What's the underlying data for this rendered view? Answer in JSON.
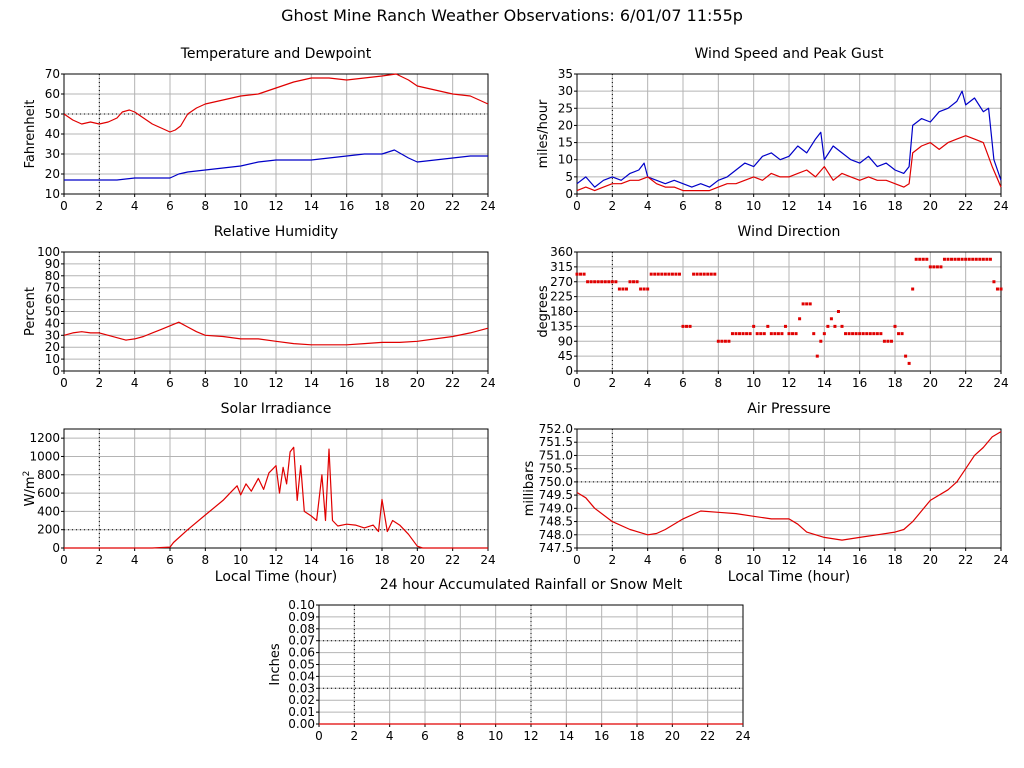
{
  "page": {
    "title": "Ghost Mine Ranch Weather Observations: 6/01/07 11:55p"
  },
  "colors": {
    "red": "#e00000",
    "blue": "#0000c8",
    "grid": "#b4b4b4",
    "axis": "#000000"
  },
  "chart_data": [
    {
      "id": "temp",
      "type": "line",
      "title": "Temperature and Dewpoint",
      "ylabel": "Fahrenheit",
      "xlabel": "",
      "xlim": [
        0,
        24
      ],
      "ylim": [
        10,
        70
      ],
      "xticks": [
        0,
        2,
        4,
        6,
        8,
        10,
        12,
        14,
        16,
        18,
        20,
        22,
        24
      ],
      "yticks": [
        10,
        20,
        30,
        40,
        50,
        60,
        70
      ],
      "dotted_y": [
        50
      ],
      "grid": true,
      "series": [
        {
          "color": "red",
          "x": [
            0,
            0.5,
            1,
            1.5,
            2,
            2.5,
            3,
            3.3,
            3.7,
            4,
            4.5,
            5,
            5.5,
            6,
            6.3,
            6.6,
            7,
            7.5,
            8,
            9,
            10,
            11,
            12,
            13,
            14,
            15,
            16,
            17,
            18,
            18.8,
            19.5,
            20,
            21,
            22,
            23,
            23.5,
            24
          ],
          "y": [
            50,
            47,
            45,
            46,
            45,
            46,
            48,
            51,
            52,
            51,
            48,
            45,
            43,
            41,
            42,
            44,
            50,
            53,
            55,
            57,
            59,
            60,
            63,
            66,
            68,
            68,
            67,
            68,
            69,
            70,
            67,
            64,
            62,
            60,
            59,
            57,
            55
          ]
        },
        {
          "color": "blue",
          "x": [
            0,
            1,
            2,
            3,
            4,
            5,
            5.5,
            6,
            6.5,
            7,
            8,
            9,
            10,
            11,
            12,
            13,
            14,
            15,
            16,
            17,
            18,
            18.7,
            19.5,
            20,
            21,
            22,
            23,
            24
          ],
          "y": [
            17,
            17,
            17,
            17,
            18,
            18,
            18,
            18,
            20,
            21,
            22,
            23,
            24,
            26,
            27,
            27,
            27,
            28,
            29,
            30,
            30,
            32,
            28,
            26,
            27,
            28,
            29,
            29
          ]
        }
      ]
    },
    {
      "id": "wind",
      "type": "line",
      "title": "Wind Speed and Peak Gust",
      "ylabel": "miles/hour",
      "xlabel": "",
      "xlim": [
        0,
        24
      ],
      "ylim": [
        0,
        35
      ],
      "xticks": [
        0,
        2,
        4,
        6,
        8,
        10,
        12,
        14,
        16,
        18,
        20,
        22,
        24
      ],
      "yticks": [
        0,
        5,
        10,
        15,
        20,
        25,
        30,
        35
      ],
      "dotted_y": [],
      "grid": true,
      "series": [
        {
          "color": "blue",
          "x": [
            0,
            0.5,
            1,
            1.5,
            2,
            2.5,
            3,
            3.5,
            3.8,
            4,
            4.5,
            5,
            5.5,
            6,
            6.5,
            7,
            7.5,
            8,
            8.5,
            9,
            9.5,
            10,
            10.5,
            11,
            11.5,
            12,
            12.5,
            13,
            13.5,
            13.8,
            14,
            14.5,
            15,
            15.5,
            16,
            16.5,
            17,
            17.5,
            18,
            18.5,
            18.8,
            19,
            19.5,
            20,
            20.5,
            21,
            21.5,
            21.8,
            22,
            22.5,
            23,
            23.3,
            23.6,
            24
          ],
          "y": [
            3,
            5,
            2,
            4,
            5,
            4,
            6,
            7,
            9,
            5,
            4,
            3,
            4,
            3,
            2,
            3,
            2,
            4,
            5,
            7,
            9,
            8,
            11,
            12,
            10,
            11,
            14,
            12,
            16,
            18,
            10,
            14,
            12,
            10,
            9,
            11,
            8,
            9,
            7,
            6,
            8,
            20,
            22,
            21,
            24,
            25,
            27,
            30,
            26,
            28,
            24,
            25,
            10,
            4
          ]
        },
        {
          "color": "red",
          "x": [
            0,
            0.5,
            1,
            1.5,
            2,
            2.5,
            3,
            3.5,
            4,
            4.5,
            5,
            5.5,
            6,
            6.5,
            7,
            7.5,
            8,
            8.5,
            9,
            9.5,
            10,
            10.5,
            11,
            11.5,
            12,
            12.5,
            13,
            13.5,
            14,
            14.5,
            15,
            15.5,
            16,
            16.5,
            17,
            17.5,
            18,
            18.5,
            18.8,
            19,
            19.5,
            20,
            20.5,
            21,
            21.5,
            22,
            22.5,
            23,
            23.5,
            24
          ],
          "y": [
            1,
            2,
            1,
            2,
            3,
            3,
            4,
            4,
            5,
            3,
            2,
            2,
            1,
            1,
            1,
            1,
            2,
            3,
            3,
            4,
            5,
            4,
            6,
            5,
            5,
            6,
            7,
            5,
            8,
            4,
            6,
            5,
            4,
            5,
            4,
            4,
            3,
            2,
            3,
            12,
            14,
            15,
            13,
            15,
            16,
            17,
            16,
            15,
            8,
            2
          ]
        }
      ]
    },
    {
      "id": "humidity",
      "type": "line",
      "title": "Relative Humidity",
      "ylabel": "Percent",
      "xlabel": "",
      "xlim": [
        0,
        24
      ],
      "ylim": [
        0,
        100
      ],
      "xticks": [
        0,
        2,
        4,
        6,
        8,
        10,
        12,
        14,
        16,
        18,
        20,
        22,
        24
      ],
      "yticks": [
        0,
        10,
        20,
        30,
        40,
        50,
        60,
        70,
        80,
        90,
        100
      ],
      "dotted_y": [],
      "grid": true,
      "series": [
        {
          "color": "red",
          "x": [
            0,
            0.5,
            1,
            1.5,
            2,
            2.5,
            3,
            3.5,
            4,
            4.5,
            5,
            5.5,
            6,
            6.5,
            7,
            7.5,
            8,
            9,
            10,
            11,
            12,
            13,
            14,
            15,
            16,
            17,
            18,
            19,
            20,
            21,
            22,
            23,
            24
          ],
          "y": [
            30,
            32,
            33,
            32,
            32,
            30,
            28,
            26,
            27,
            29,
            32,
            35,
            38,
            41,
            37,
            33,
            30,
            29,
            27,
            27,
            25,
            23,
            22,
            22,
            22,
            23,
            24,
            24,
            25,
            27,
            29,
            32,
            36
          ]
        }
      ]
    },
    {
      "id": "winddir",
      "type": "scatter",
      "title": "Wind Direction",
      "ylabel": "degrees",
      "xlabel": "",
      "xlim": [
        0,
        24
      ],
      "ylim": [
        0,
        360
      ],
      "xticks": [
        0,
        2,
        4,
        6,
        8,
        10,
        12,
        14,
        16,
        18,
        20,
        22,
        24
      ],
      "yticks": [
        0,
        45,
        90,
        135,
        180,
        225,
        270,
        315,
        360
      ],
      "dotted_y": [],
      "grid": true,
      "series": [
        {
          "color": "red",
          "x": [
            0,
            0.2,
            0.4,
            0.6,
            0.8,
            1,
            1.2,
            1.4,
            1.6,
            1.8,
            2,
            2.2,
            2.4,
            2.6,
            2.8,
            3,
            3.2,
            3.4,
            3.6,
            3.8,
            4,
            4.2,
            4.4,
            4.6,
            4.8,
            5,
            5.2,
            5.4,
            5.6,
            5.8,
            6,
            6.2,
            6.4,
            6.6,
            6.8,
            7,
            7.2,
            7.4,
            7.6,
            7.8,
            8,
            8.2,
            8.4,
            8.6,
            8.8,
            9,
            9.2,
            9.4,
            9.6,
            9.8,
            10,
            10.2,
            10.4,
            10.6,
            10.8,
            11,
            11.2,
            11.4,
            11.6,
            11.8,
            12,
            12.2,
            12.4,
            12.6,
            12.8,
            13,
            13.2,
            13.4,
            13.6,
            13.8,
            14,
            14.2,
            14.4,
            14.6,
            14.8,
            15,
            15.2,
            15.4,
            15.6,
            15.8,
            16,
            16.2,
            16.4,
            16.6,
            16.8,
            17,
            17.2,
            17.4,
            17.6,
            17.8,
            18,
            18.2,
            18.4,
            18.6,
            18.8,
            19,
            19.2,
            19.4,
            19.6,
            19.8,
            20,
            20.2,
            20.4,
            20.6,
            20.8,
            21,
            21.2,
            21.4,
            21.6,
            21.8,
            22,
            22.2,
            22.4,
            22.6,
            22.8,
            23,
            23.2,
            23.4,
            23.6,
            23.8,
            24
          ],
          "y": [
            293,
            293,
            293,
            270,
            270,
            270,
            270,
            270,
            270,
            270,
            270,
            270,
            248,
            248,
            248,
            270,
            270,
            270,
            248,
            248,
            248,
            293,
            293,
            293,
            293,
            293,
            293,
            293,
            293,
            293,
            135,
            135,
            135,
            293,
            293,
            293,
            293,
            293,
            293,
            293,
            90,
            90,
            90,
            90,
            113,
            113,
            113,
            113,
            113,
            113,
            135,
            113,
            113,
            113,
            135,
            113,
            113,
            113,
            113,
            135,
            113,
            113,
            113,
            158,
            203,
            203,
            203,
            113,
            45,
            90,
            113,
            135,
            158,
            135,
            180,
            135,
            113,
            113,
            113,
            113,
            113,
            113,
            113,
            113,
            113,
            113,
            113,
            90,
            90,
            90,
            135,
            113,
            113,
            45,
            23,
            248,
            338,
            338,
            338,
            338,
            315,
            315,
            315,
            315,
            338,
            338,
            338,
            338,
            338,
            338,
            338,
            338,
            338,
            338,
            338,
            338,
            338,
            338,
            270,
            248,
            248
          ]
        }
      ]
    },
    {
      "id": "solar",
      "type": "line",
      "title": "Solar Irradiance",
      "ylabel": "W/m",
      "ylabel_sup": "2",
      "xlabel": "Local Time (hour)",
      "xlim": [
        0,
        24
      ],
      "ylim": [
        0,
        1300
      ],
      "xticks": [
        0,
        2,
        4,
        6,
        8,
        10,
        12,
        14,
        16,
        18,
        20,
        22,
        24
      ],
      "yticks": [
        0,
        200,
        400,
        600,
        800,
        1000,
        1200
      ],
      "dotted_y": [
        200
      ],
      "grid": true,
      "series": [
        {
          "color": "red",
          "x": [
            0,
            5,
            6,
            6.2,
            7,
            8,
            9,
            9.5,
            9.8,
            10,
            10.3,
            10.6,
            11,
            11.3,
            11.6,
            11.8,
            12,
            12.2,
            12.4,
            12.6,
            12.8,
            13,
            13.2,
            13.4,
            13.6,
            14,
            14.3,
            14.6,
            14.8,
            15,
            15.2,
            15.5,
            16,
            16.5,
            17,
            17.5,
            17.8,
            18,
            18.3,
            18.6,
            19,
            19.5,
            20,
            20.3,
            21,
            22,
            24
          ],
          "y": [
            0,
            0,
            10,
            60,
            200,
            360,
            520,
            620,
            680,
            580,
            700,
            620,
            760,
            640,
            820,
            860,
            900,
            600,
            880,
            700,
            1050,
            1100,
            520,
            900,
            400,
            350,
            300,
            800,
            300,
            1080,
            300,
            240,
            260,
            250,
            220,
            250,
            180,
            530,
            180,
            300,
            250,
            150,
            20,
            0,
            0,
            0,
            0
          ]
        }
      ]
    },
    {
      "id": "pressure",
      "type": "line",
      "title": "Air Pressure",
      "ylabel": "millibars",
      "xlabel": "Local Time (hour)",
      "xlim": [
        0,
        24
      ],
      "ylim": [
        747.5,
        752.0
      ],
      "xticks": [
        0,
        2,
        4,
        6,
        8,
        10,
        12,
        14,
        16,
        18,
        20,
        22,
        24
      ],
      "yticks": [
        747.5,
        748.0,
        748.5,
        749.0,
        749.5,
        750.0,
        750.5,
        751.0,
        751.5,
        752.0
      ],
      "ytick_labels": [
        "747.5",
        "748.0",
        "748.5",
        "749.0",
        "749.5",
        "750.0",
        "750.5",
        "751.0",
        "751.5",
        "752.0"
      ],
      "dotted_y": [
        750.0
      ],
      "grid": true,
      "series": [
        {
          "color": "red",
          "x": [
            0,
            0.5,
            1,
            2,
            3,
            4,
            4.5,
            5,
            6,
            7,
            8,
            9,
            10,
            11,
            12,
            12.5,
            13,
            14,
            15,
            16,
            17,
            18,
            18.5,
            19,
            19.5,
            20,
            21,
            21.5,
            22,
            22.5,
            23,
            23.5,
            24
          ],
          "y": [
            749.6,
            749.4,
            749.0,
            748.5,
            748.2,
            748.0,
            748.05,
            748.2,
            748.6,
            748.9,
            748.85,
            748.8,
            748.7,
            748.6,
            748.6,
            748.4,
            748.1,
            747.9,
            747.8,
            747.9,
            748.0,
            748.1,
            748.2,
            748.5,
            748.9,
            749.3,
            749.7,
            750.0,
            750.5,
            751.0,
            751.3,
            751.7,
            751.9
          ]
        }
      ]
    },
    {
      "id": "rain",
      "type": "line",
      "title": "24 hour Accumulated Rainfall or Snow Melt",
      "ylabel": "Inches",
      "xlabel": "",
      "xlim": [
        0,
        24
      ],
      "ylim": [
        0,
        0.1
      ],
      "xticks": [
        0,
        2,
        4,
        6,
        8,
        10,
        12,
        14,
        16,
        18,
        20,
        22,
        24
      ],
      "yticks": [
        0,
        0.01,
        0.02,
        0.03,
        0.04,
        0.05,
        0.06,
        0.07,
        0.08,
        0.09,
        0.1
      ],
      "ytick_labels": [
        "0.00",
        "0.01",
        "0.02",
        "0.03",
        "0.04",
        "0.05",
        "0.06",
        "0.07",
        "0.08",
        "0.09",
        "0.10"
      ],
      "dotted_y": [
        0.03,
        0.07
      ],
      "dotted_x": [
        12
      ],
      "grid": true,
      "series": [
        {
          "color": "red",
          "x": [
            0,
            24
          ],
          "y": [
            0,
            0
          ]
        }
      ]
    }
  ]
}
